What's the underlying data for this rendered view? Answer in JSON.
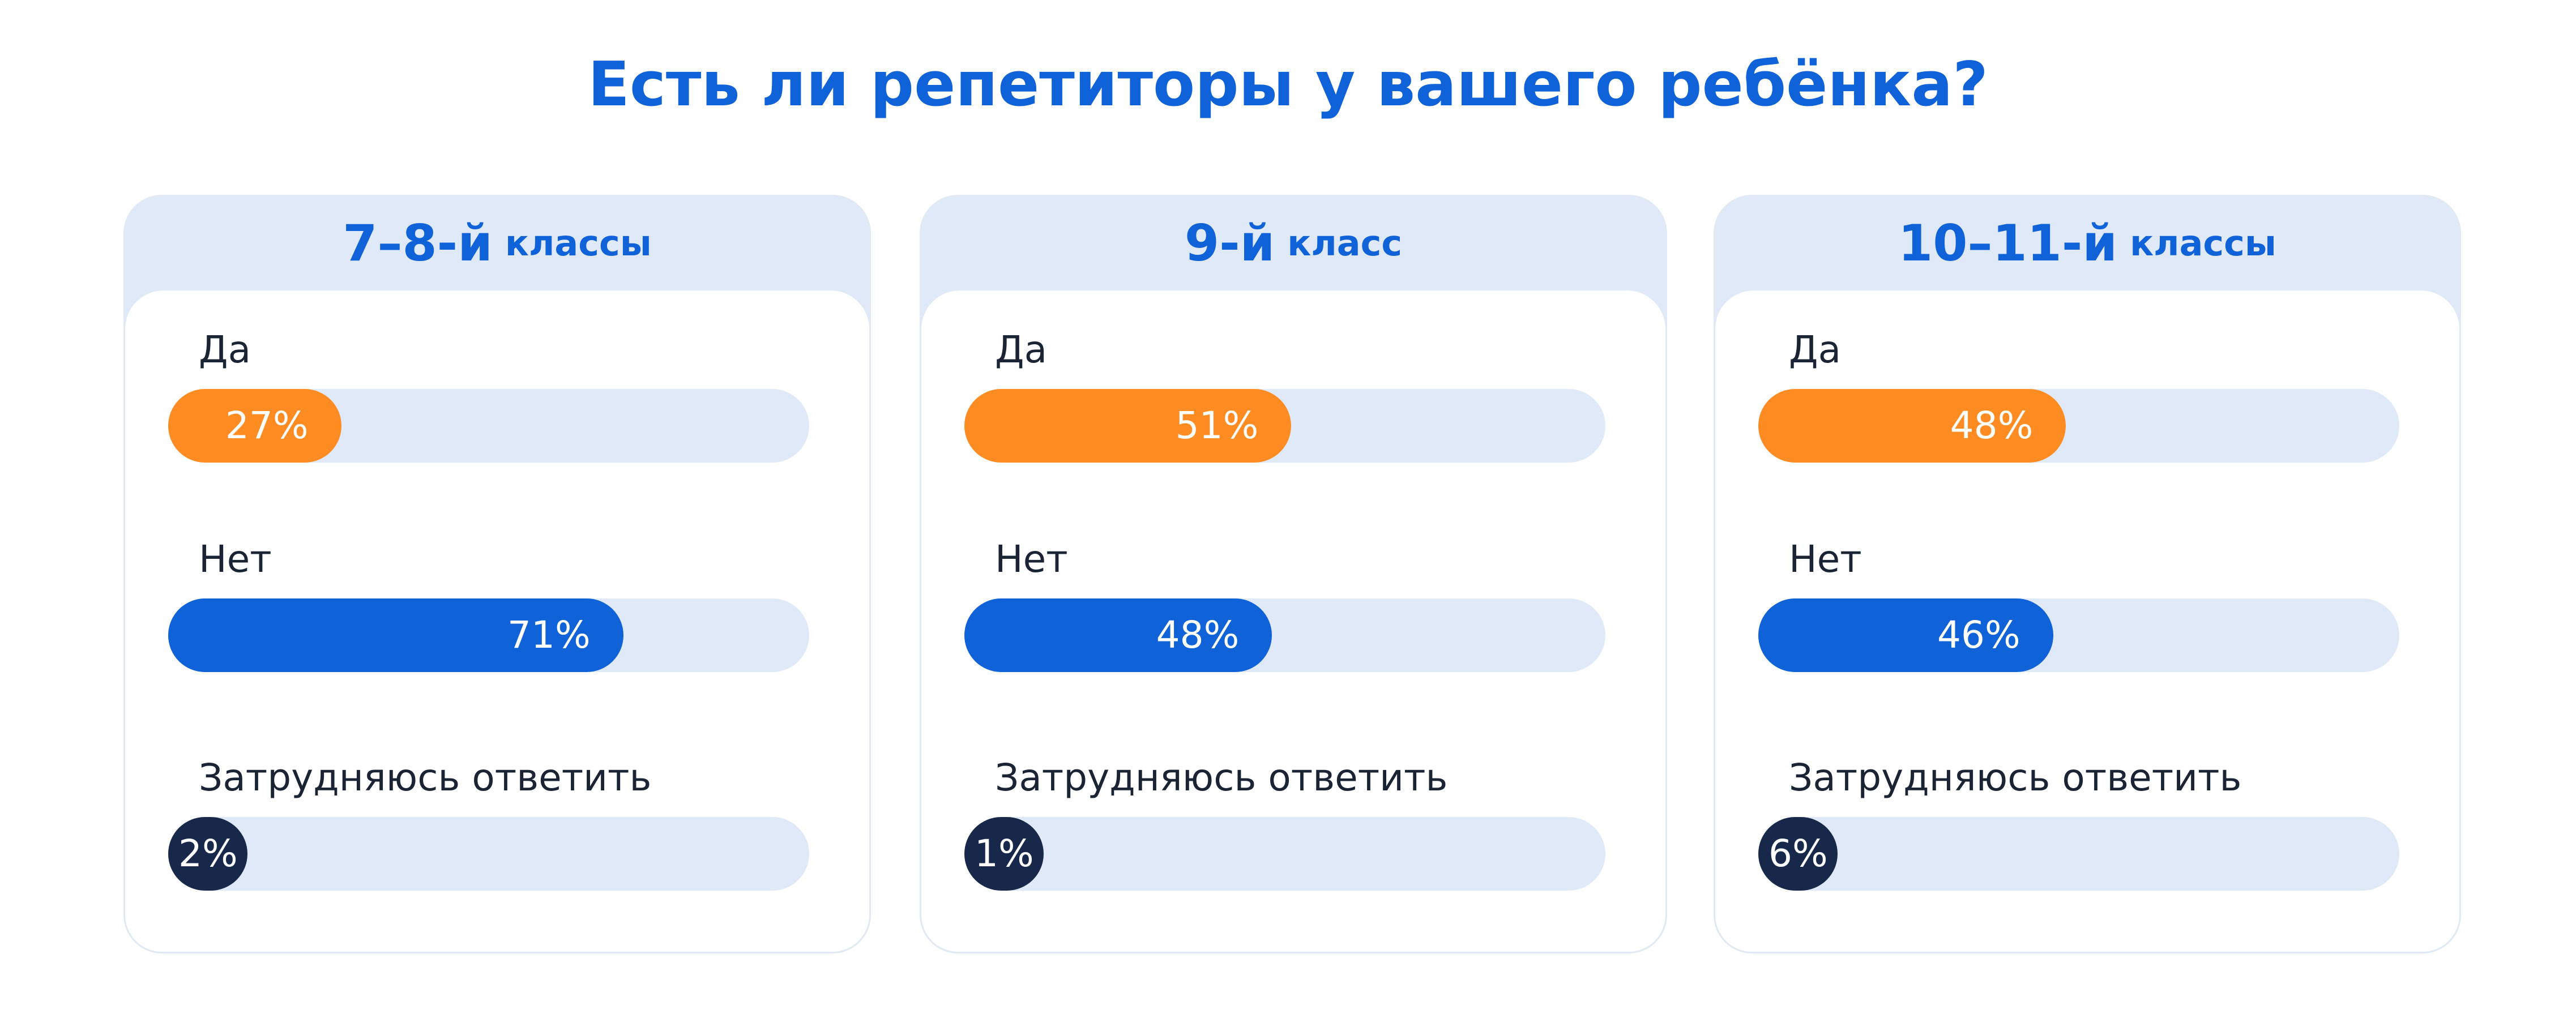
{
  "title": "Есть ли репетиторы у вашего ребёнка?",
  "colors": {
    "title": "#0f62d8",
    "yes": "#ff8c22",
    "no": "#0f62d8",
    "unsure": "#17284a",
    "track": "#dfe9f8",
    "label": "#1a2434"
  },
  "chart_data": [
    {
      "type": "bar",
      "group_number": "7–8-й",
      "group_word": "классы",
      "categories": [
        "Да",
        "Нет",
        "Затрудняюсь ответить"
      ],
      "values": [
        27,
        71,
        2
      ],
      "value_labels": [
        "27%",
        "71%",
        "2%"
      ],
      "unit": "%",
      "xlim": [
        0,
        100
      ]
    },
    {
      "type": "bar",
      "group_number": "9-й",
      "group_word": "класс",
      "categories": [
        "Да",
        "Нет",
        "Затрудняюсь ответить"
      ],
      "values": [
        51,
        48,
        1
      ],
      "value_labels": [
        "51%",
        "48%",
        "1%"
      ],
      "unit": "%",
      "xlim": [
        0,
        100
      ]
    },
    {
      "type": "bar",
      "group_number": "10–11-й",
      "group_word": "классы",
      "categories": [
        "Да",
        "Нет",
        "Затрудняюсь ответить"
      ],
      "values": [
        48,
        46,
        6
      ],
      "value_labels": [
        "48%",
        "46%",
        "6%"
      ],
      "unit": "%",
      "xlim": [
        0,
        100
      ]
    }
  ]
}
